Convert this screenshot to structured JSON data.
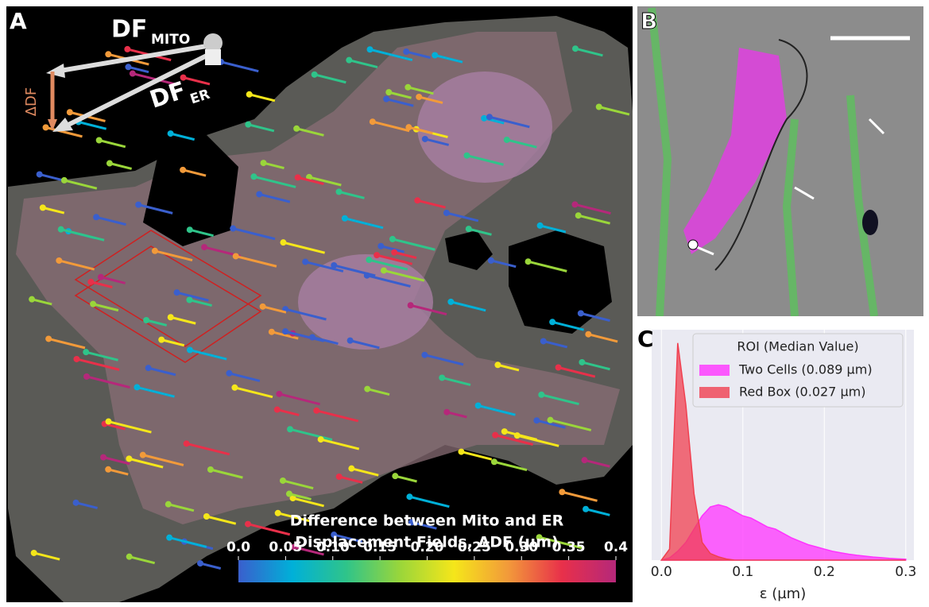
{
  "panel_a": {
    "label": "A",
    "df_mito": {
      "main": "DF",
      "sub": "MITO"
    },
    "delta_df": "ΔDF",
    "df_er": {
      "main": "DF",
      "sub": "ER"
    },
    "colorbar": {
      "title_lines": [
        "Difference between Mito and ER",
        "Displacement Fields, ΔDF (µm)"
      ],
      "lim": [
        0,
        0.4
      ],
      "ticks": [
        {
          "value": 0,
          "label": "0.0"
        },
        0.05,
        {
          "value": 0.1,
          "label": "0.10"
        },
        0.15,
        {
          "value": 0.2,
          "label": "0.20"
        },
        0.25,
        {
          "value": 0.3,
          "label": "0.30"
        },
        0.35,
        0.4
      ],
      "colors": [
        "#3a5fcd",
        "#00b0d8",
        "#2fc48a",
        "#9ad63a",
        "#f5e61a",
        "#f29a3a",
        "#e8304a",
        "#b5287a"
      ]
    }
  },
  "panel_b": {
    "label": "B"
  },
  "chart_data": {
    "type": "area",
    "label": "C",
    "legend_title": "ROI (Median Value)",
    "x_label": "ε (µm)",
    "x": [
      0,
      0.01,
      0.02,
      0.03,
      0.04,
      0.05,
      0.06,
      0.07,
      0.08,
      0.09,
      0.1,
      0.11,
      0.12,
      0.13,
      0.14,
      0.15,
      0.16,
      0.17,
      0.18,
      0.19,
      0.2,
      0.21,
      0.22,
      0.23,
      0.24,
      0.25,
      0.26,
      0.27,
      0.28,
      0.29,
      0.3
    ],
    "series": [
      {
        "name": "Two Cells (0.089 µm)",
        "color": "#ff33ff",
        "values": [
          0,
          0.01,
          0.04,
          0.08,
          0.14,
          0.2,
          0.24,
          0.25,
          0.24,
          0.22,
          0.2,
          0.19,
          0.17,
          0.15,
          0.14,
          0.12,
          0.1,
          0.085,
          0.07,
          0.06,
          0.05,
          0.04,
          0.033,
          0.027,
          0.022,
          0.018,
          0.014,
          0.011,
          0.008,
          0.006,
          0.004
        ]
      },
      {
        "name": "Red Box (0.027 µm)",
        "color": "#f04050",
        "values": [
          0,
          0.05,
          0.98,
          0.7,
          0.3,
          0.08,
          0.03,
          0.015,
          0.005,
          0,
          0,
          0,
          0,
          0,
          0,
          0,
          0,
          0,
          0,
          0,
          0,
          0,
          0,
          0,
          0,
          0,
          0,
          0,
          0,
          0,
          0
        ]
      }
    ],
    "xlim": [
      -0.012,
      0.31
    ],
    "ylim": [
      0,
      1.04
    ],
    "xticks": [
      {
        "value": 0,
        "label": "0.0"
      },
      0.1,
      0.2,
      0.3
    ],
    "grid": true
  }
}
